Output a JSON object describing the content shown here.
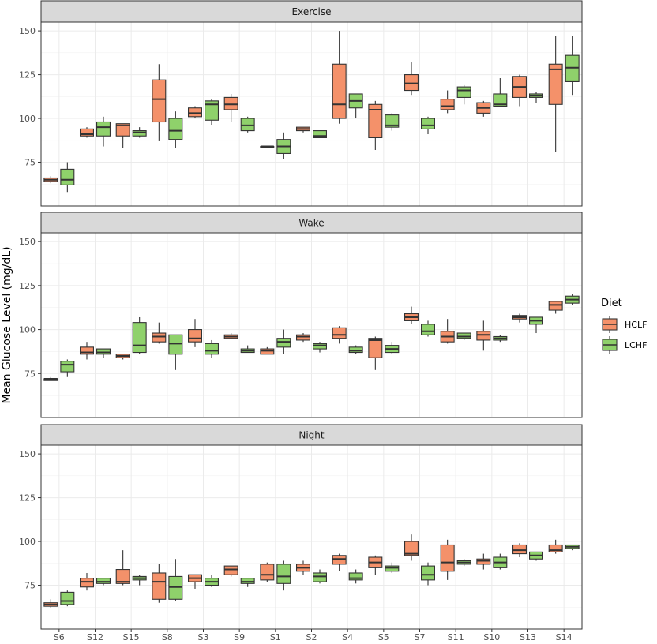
{
  "chart_data": {
    "type": "boxplot",
    "ylabel": "Mean Glucose Level (mg/dL)",
    "ylim": [
      50,
      155
    ],
    "yticks": [
      75,
      100,
      125,
      150
    ],
    "categories": [
      "S6",
      "S12",
      "S15",
      "S8",
      "S3",
      "S9",
      "S1",
      "S2",
      "S4",
      "S5",
      "S7",
      "S11",
      "S10",
      "S13",
      "S14"
    ],
    "legend": {
      "title": "Diet",
      "position": "right",
      "items": [
        {
          "label": "HCLF",
          "color": "#F4916A"
        },
        {
          "label": "LCHF",
          "color": "#8FD16B"
        }
      ]
    },
    "grid": true,
    "panels": [
      {
        "title": "Exercise",
        "series": [
          {
            "name": "HCLF",
            "boxes": [
              [
                63,
                64,
                65,
                66,
                67
              ],
              [
                89,
                90,
                91,
                94,
                95
              ],
              [
                83,
                90,
                96,
                97,
                97
              ],
              [
                87,
                98,
                111,
                122,
                131
              ],
              [
                100,
                101,
                103,
                106,
                107
              ],
              [
                98,
                105,
                108,
                112,
                114
              ],
              [
                84,
                84,
                84,
                84,
                84
              ],
              [
                92,
                93,
                94,
                95,
                95
              ],
              [
                97,
                100,
                108,
                131,
                150
              ],
              [
                82,
                89,
                105,
                108,
                110
              ],
              [
                113,
                116,
                120,
                125,
                132
              ],
              [
                103,
                105,
                107,
                111,
                116
              ],
              [
                101,
                103,
                106,
                109,
                110
              ],
              [
                107,
                112,
                118,
                124,
                125
              ],
              [
                81,
                108,
                128,
                131,
                147
              ]
            ]
          },
          {
            "name": "LCHF",
            "boxes": [
              [
                58,
                62,
                65,
                71,
                75
              ],
              [
                84,
                90,
                95,
                98,
                101
              ],
              [
                89,
                90,
                92,
                93,
                95
              ],
              [
                83,
                88,
                93,
                100,
                104
              ],
              [
                96,
                99,
                108,
                110,
                111
              ],
              [
                92,
                93,
                96,
                100,
                101
              ],
              [
                77,
                80,
                84,
                88,
                92
              ],
              [
                89,
                89,
                90,
                93,
                93
              ],
              [
                100,
                106,
                110,
                114,
                114
              ],
              [
                93,
                95,
                96,
                102,
                103
              ],
              [
                91,
                94,
                96,
                100,
                101
              ],
              [
                108,
                112,
                116,
                118,
                119
              ],
              [
                107,
                107,
                108,
                114,
                123
              ],
              [
                109,
                112,
                113,
                114,
                115
              ],
              [
                113,
                121,
                129,
                136,
                147
              ]
            ]
          }
        ]
      },
      {
        "title": "Wake",
        "series": [
          {
            "name": "HCLF",
            "boxes": [
              [
                71,
                71,
                72,
                72,
                73
              ],
              [
                83,
                86,
                87,
                90,
                93
              ],
              [
                83,
                84,
                85,
                86,
                86
              ],
              [
                92,
                93,
                96,
                98,
                104
              ],
              [
                90,
                93,
                95,
                100,
                106
              ],
              [
                95,
                95,
                96,
                97,
                98
              ],
              [
                86,
                86,
                88,
                89,
                90
              ],
              [
                93,
                94,
                96,
                97,
                98
              ],
              [
                92,
                95,
                97,
                101,
                102
              ],
              [
                77,
                84,
                94,
                95,
                96
              ],
              [
                103,
                105,
                107,
                109,
                113
              ],
              [
                92,
                93,
                96,
                99,
                106
              ],
              [
                88,
                94,
                97,
                99,
                105
              ],
              [
                104,
                106,
                107,
                108,
                109
              ],
              [
                109,
                111,
                114,
                116,
                116
              ]
            ]
          },
          {
            "name": "LCHF",
            "boxes": [
              [
                73,
                76,
                80,
                82,
                83
              ],
              [
                84,
                86,
                87,
                89,
                89
              ],
              [
                86,
                87,
                91,
                104,
                107
              ],
              [
                77,
                86,
                92,
                97,
                97
              ],
              [
                84,
                86,
                88,
                92,
                94
              ],
              [
                87,
                87,
                88,
                89,
                91
              ],
              [
                86,
                90,
                93,
                95,
                100
              ],
              [
                87,
                89,
                91,
                92,
                93
              ],
              [
                86,
                87,
                88,
                90,
                91
              ],
              [
                86,
                87,
                89,
                91,
                93
              ],
              [
                96,
                97,
                99,
                103,
                105
              ],
              [
                94,
                95,
                96,
                98,
                98
              ],
              [
                93,
                94,
                95,
                96,
                97
              ],
              [
                98,
                103,
                105,
                107,
                107
              ],
              [
                114,
                115,
                117,
                119,
                120
              ]
            ]
          }
        ]
      },
      {
        "title": "Night",
        "series": [
          {
            "name": "HCLF",
            "boxes": [
              [
                62,
                63,
                64,
                65,
                67
              ],
              [
                72,
                74,
                77,
                79,
                82
              ],
              [
                75,
                76,
                77,
                84,
                95
              ],
              [
                65,
                67,
                77,
                82,
                87
              ],
              [
                73,
                77,
                79,
                81,
                81
              ],
              [
                80,
                81,
                84,
                86,
                86
              ],
              [
                77,
                78,
                81,
                87,
                88
              ],
              [
                81,
                83,
                85,
                87,
                89
              ],
              [
                83,
                87,
                90,
                92,
                93
              ],
              [
                81,
                85,
                88,
                91,
                92
              ],
              [
                89,
                92,
                93,
                100,
                104
              ],
              [
                78,
                83,
                88,
                98,
                101
              ],
              [
                84,
                87,
                89,
                90,
                93
              ],
              [
                91,
                93,
                95,
                98,
                99
              ],
              [
                93,
                94,
                95,
                98,
                101
              ]
            ]
          },
          {
            "name": "LCHF",
            "boxes": [
              [
                63,
                64,
                66,
                71,
                72
              ],
              [
                75,
                76,
                77,
                79,
                79
              ],
              [
                75,
                78,
                79,
                80,
                81
              ],
              [
                66,
                67,
                74,
                80,
                90
              ],
              [
                74,
                75,
                77,
                79,
                81
              ],
              [
                74,
                76,
                77,
                79,
                79
              ],
              [
                72,
                76,
                80,
                87,
                89
              ],
              [
                76,
                77,
                80,
                82,
                84
              ],
              [
                76,
                78,
                79,
                82,
                84
              ],
              [
                82,
                83,
                85,
                86,
                88
              ],
              [
                75,
                78,
                81,
                86,
                88
              ],
              [
                86,
                87,
                88,
                89,
                90
              ],
              [
                84,
                85,
                88,
                91,
                93
              ],
              [
                89,
                90,
                92,
                94,
                94
              ],
              [
                95,
                96,
                97,
                98,
                98
              ]
            ]
          }
        ]
      }
    ]
  }
}
